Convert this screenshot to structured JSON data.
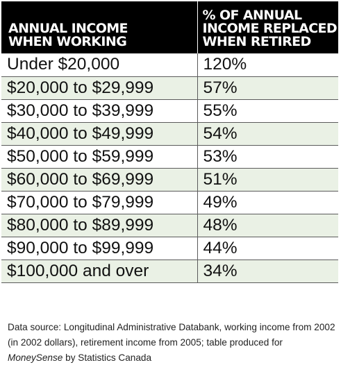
{
  "chart_data": {
    "type": "table",
    "columns": [
      [
        "Annual income",
        "when working"
      ],
      [
        "% of annual",
        "income replaced",
        "when retired"
      ]
    ],
    "rows": [
      {
        "income": "Under $20,000",
        "replaced": "120%"
      },
      {
        "income": "$20,000 to $29,999",
        "replaced": "57%"
      },
      {
        "income": "$30,000 to $39,999",
        "replaced": "55%"
      },
      {
        "income": "$40,000 to $49,999",
        "replaced": "54%"
      },
      {
        "income": "$50,000 to $59,999",
        "replaced": "53%"
      },
      {
        "income": "$60,000 to $69,999",
        "replaced": "51%"
      },
      {
        "income": "$70,000 to $79,999",
        "replaced": "49%"
      },
      {
        "income": "$80,000 to $89,999",
        "replaced": "48%"
      },
      {
        "income": "$90,000 to $99,999",
        "replaced": "44%"
      },
      {
        "income": "$100,000 and over",
        "replaced": "34%"
      }
    ],
    "source_note": {
      "before": "Data source: Longitudinal Administrative Databank, working income from 2002 (in 2002 dollars), retirement income from 2005; table produced for ",
      "emphasis": "MoneySense",
      "after": " by Statistics Canada"
    }
  },
  "colors": {
    "header_bg": "#000000",
    "header_text": "#ffffff",
    "stripe": "#eaf1e5",
    "rule": "#5a5a5a"
  }
}
